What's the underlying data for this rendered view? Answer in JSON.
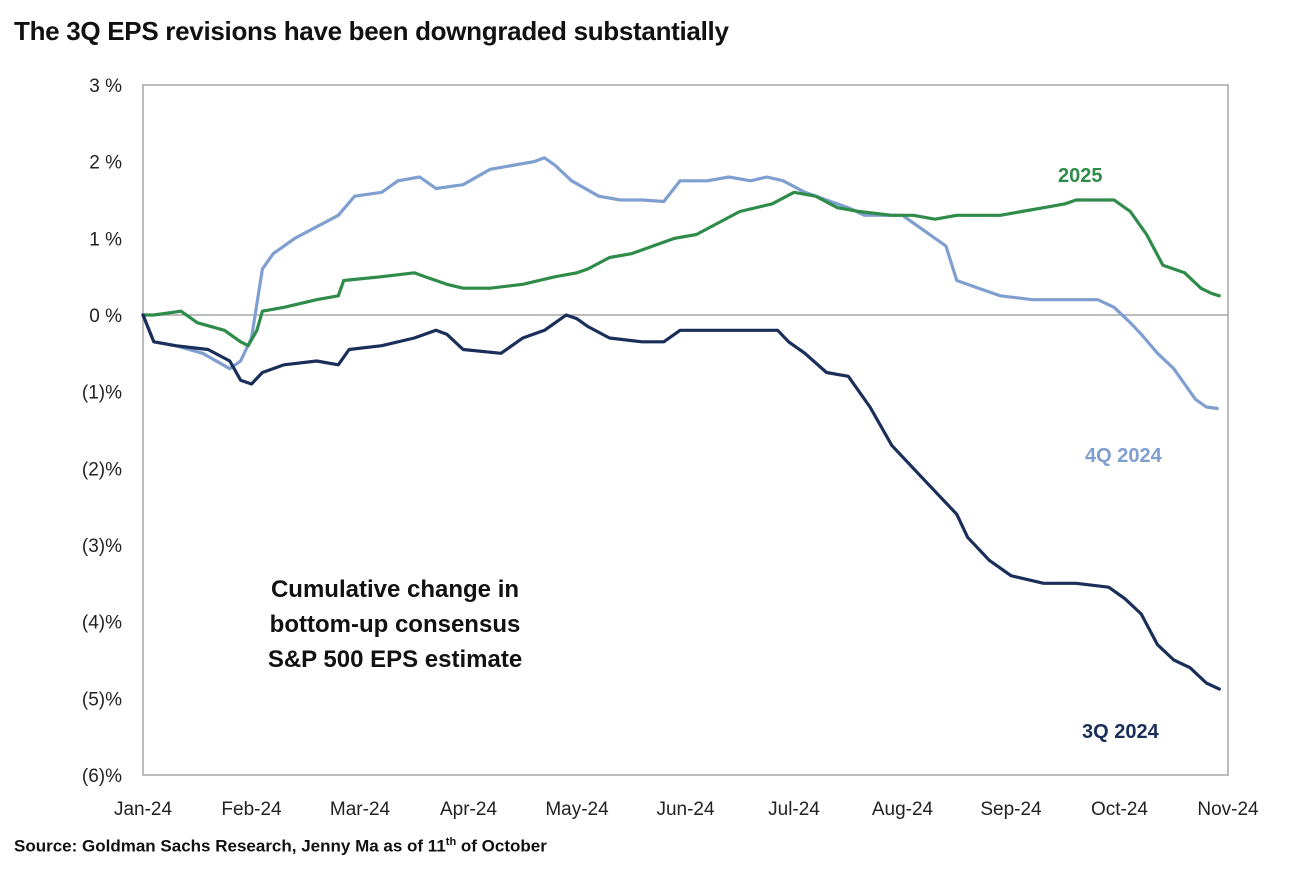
{
  "title": "The 3Q EPS revisions have been downgraded substantially",
  "source": {
    "prefix": "Source: Goldman Sachs Research, Jenny Ma as of 11",
    "superscript": "th",
    "suffix": " of October"
  },
  "chart_data": {
    "type": "line",
    "title": "The 3Q EPS revisions have been downgraded substantially",
    "xlabel": "",
    "ylabel": "",
    "x_ticks": [
      "Jan-24",
      "Feb-24",
      "Mar-24",
      "Apr-24",
      "May-24",
      "Jun-24",
      "Jul-24",
      "Aug-24",
      "Sep-24",
      "Oct-24",
      "Nov-24"
    ],
    "xlim": [
      0,
      10
    ],
    "ylim": [
      -6,
      3
    ],
    "y_ticks": [
      {
        "value": 3,
        "label": "3 %"
      },
      {
        "value": 2,
        "label": "2 %"
      },
      {
        "value": 1,
        "label": "1 %"
      },
      {
        "value": 0,
        "label": "0 %"
      },
      {
        "value": -1,
        "label": "(1)%"
      },
      {
        "value": -2,
        "label": "(2)%"
      },
      {
        "value": -3,
        "label": "(3)%"
      },
      {
        "value": -4,
        "label": "(4)%"
      },
      {
        "value": -5,
        "label": "(5)%"
      },
      {
        "value": -6,
        "label": "(6)%"
      }
    ],
    "grid": false,
    "zero_line": true,
    "annotation": [
      "Cumulative change in",
      "bottom-up consensus",
      "S&P 500 EPS estimate"
    ],
    "series": [
      {
        "name": "4Q 2024",
        "color": "#7f9fd0",
        "points": [
          [
            0,
            0
          ],
          [
            0.1,
            -0.35
          ],
          [
            0.3,
            -0.4
          ],
          [
            0.55,
            -0.5
          ],
          [
            0.8,
            -0.7
          ],
          [
            0.9,
            -0.6
          ],
          [
            1.0,
            -0.3
          ],
          [
            1.1,
            0.6
          ],
          [
            1.2,
            0.8
          ],
          [
            1.4,
            1.0
          ],
          [
            1.6,
            1.15
          ],
          [
            1.8,
            1.3
          ],
          [
            1.95,
            1.55
          ],
          [
            2.2,
            1.6
          ],
          [
            2.35,
            1.75
          ],
          [
            2.55,
            1.8
          ],
          [
            2.7,
            1.65
          ],
          [
            2.95,
            1.7
          ],
          [
            3.2,
            1.9
          ],
          [
            3.4,
            1.95
          ],
          [
            3.6,
            2.0
          ],
          [
            3.7,
            2.05
          ],
          [
            3.8,
            1.95
          ],
          [
            3.95,
            1.75
          ],
          [
            4.2,
            1.55
          ],
          [
            4.4,
            1.5
          ],
          [
            4.6,
            1.5
          ],
          [
            4.8,
            1.48
          ],
          [
            4.95,
            1.75
          ],
          [
            5.2,
            1.75
          ],
          [
            5.4,
            1.8
          ],
          [
            5.6,
            1.75
          ],
          [
            5.75,
            1.8
          ],
          [
            5.9,
            1.75
          ],
          [
            6.1,
            1.6
          ],
          [
            6.3,
            1.5
          ],
          [
            6.5,
            1.4
          ],
          [
            6.65,
            1.3
          ],
          [
            6.8,
            1.3
          ],
          [
            7.0,
            1.3
          ],
          [
            7.2,
            1.1
          ],
          [
            7.4,
            0.9
          ],
          [
            7.5,
            0.45
          ],
          [
            7.7,
            0.35
          ],
          [
            7.9,
            0.25
          ],
          [
            8.2,
            0.2
          ],
          [
            8.5,
            0.2
          ],
          [
            8.8,
            0.2
          ],
          [
            8.95,
            0.1
          ],
          [
            9.1,
            -0.1
          ],
          [
            9.2,
            -0.25
          ],
          [
            9.35,
            -0.5
          ],
          [
            9.5,
            -0.7
          ],
          [
            9.6,
            -0.9
          ],
          [
            9.7,
            -1.1
          ],
          [
            9.8,
            -1.2
          ],
          [
            9.9,
            -1.22
          ]
        ]
      },
      {
        "name": "2025",
        "color": "#2e8b4a",
        "points": [
          [
            0,
            0
          ],
          [
            0.1,
            0.0
          ],
          [
            0.35,
            0.05
          ],
          [
            0.5,
            -0.1
          ],
          [
            0.75,
            -0.2
          ],
          [
            0.9,
            -0.35
          ],
          [
            0.97,
            -0.4
          ],
          [
            1.05,
            -0.2
          ],
          [
            1.1,
            0.05
          ],
          [
            1.3,
            0.1
          ],
          [
            1.6,
            0.2
          ],
          [
            1.8,
            0.25
          ],
          [
            1.85,
            0.45
          ],
          [
            2.2,
            0.5
          ],
          [
            2.5,
            0.55
          ],
          [
            2.6,
            0.5
          ],
          [
            2.8,
            0.4
          ],
          [
            2.95,
            0.35
          ],
          [
            3.2,
            0.35
          ],
          [
            3.5,
            0.4
          ],
          [
            3.8,
            0.5
          ],
          [
            4.0,
            0.55
          ],
          [
            4.1,
            0.6
          ],
          [
            4.3,
            0.75
          ],
          [
            4.5,
            0.8
          ],
          [
            4.7,
            0.9
          ],
          [
            4.9,
            1.0
          ],
          [
            5.1,
            1.05
          ],
          [
            5.3,
            1.2
          ],
          [
            5.5,
            1.35
          ],
          [
            5.8,
            1.45
          ],
          [
            6.0,
            1.6
          ],
          [
            6.2,
            1.55
          ],
          [
            6.4,
            1.4
          ],
          [
            6.6,
            1.35
          ],
          [
            6.9,
            1.3
          ],
          [
            7.1,
            1.3
          ],
          [
            7.3,
            1.25
          ],
          [
            7.5,
            1.3
          ],
          [
            7.7,
            1.3
          ],
          [
            7.9,
            1.3
          ],
          [
            8.1,
            1.35
          ],
          [
            8.3,
            1.4
          ],
          [
            8.5,
            1.45
          ],
          [
            8.6,
            1.5
          ],
          [
            8.8,
            1.5
          ],
          [
            8.95,
            1.5
          ],
          [
            9.1,
            1.35
          ],
          [
            9.25,
            1.05
          ],
          [
            9.4,
            0.65
          ],
          [
            9.6,
            0.55
          ],
          [
            9.75,
            0.35
          ],
          [
            9.85,
            0.28
          ],
          [
            9.92,
            0.25
          ]
        ]
      },
      {
        "name": "3Q 2024",
        "color": "#1a2e5a",
        "points": [
          [
            0,
            0
          ],
          [
            0.1,
            -0.35
          ],
          [
            0.3,
            -0.4
          ],
          [
            0.6,
            -0.45
          ],
          [
            0.8,
            -0.6
          ],
          [
            0.9,
            -0.85
          ],
          [
            1.0,
            -0.9
          ],
          [
            1.1,
            -0.75
          ],
          [
            1.3,
            -0.65
          ],
          [
            1.6,
            -0.6
          ],
          [
            1.8,
            -0.65
          ],
          [
            1.9,
            -0.45
          ],
          [
            2.2,
            -0.4
          ],
          [
            2.5,
            -0.3
          ],
          [
            2.7,
            -0.2
          ],
          [
            2.8,
            -0.25
          ],
          [
            2.95,
            -0.45
          ],
          [
            3.3,
            -0.5
          ],
          [
            3.5,
            -0.3
          ],
          [
            3.7,
            -0.2
          ],
          [
            3.8,
            -0.1
          ],
          [
            3.9,
            0.0
          ],
          [
            4.0,
            -0.05
          ],
          [
            4.1,
            -0.15
          ],
          [
            4.3,
            -0.3
          ],
          [
            4.6,
            -0.35
          ],
          [
            4.8,
            -0.35
          ],
          [
            4.95,
            -0.2
          ],
          [
            5.3,
            -0.2
          ],
          [
            5.6,
            -0.2
          ],
          [
            5.85,
            -0.2
          ],
          [
            5.95,
            -0.35
          ],
          [
            6.1,
            -0.5
          ],
          [
            6.3,
            -0.75
          ],
          [
            6.5,
            -0.8
          ],
          [
            6.7,
            -1.2
          ],
          [
            6.9,
            -1.7
          ],
          [
            7.1,
            -2.0
          ],
          [
            7.3,
            -2.3
          ],
          [
            7.5,
            -2.6
          ],
          [
            7.6,
            -2.9
          ],
          [
            7.8,
            -3.2
          ],
          [
            8.0,
            -3.4
          ],
          [
            8.3,
            -3.5
          ],
          [
            8.6,
            -3.5
          ],
          [
            8.9,
            -3.55
          ],
          [
            9.05,
            -3.7
          ],
          [
            9.2,
            -3.9
          ],
          [
            9.35,
            -4.3
          ],
          [
            9.5,
            -4.5
          ],
          [
            9.65,
            -4.6
          ],
          [
            9.8,
            -4.8
          ],
          [
            9.92,
            -4.88
          ]
        ]
      }
    ]
  }
}
